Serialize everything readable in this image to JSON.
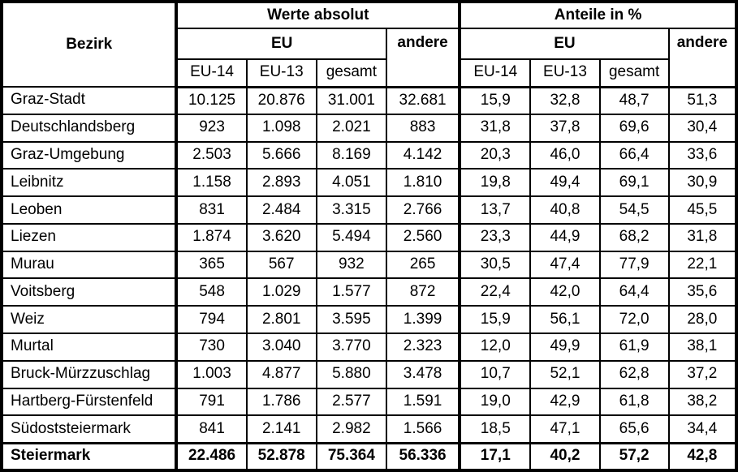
{
  "chart_data": {
    "type": "table",
    "header": {
      "bezirk_label": "Bezirk",
      "group_absolute": "Werte absolut",
      "group_percent": "Anteile in %",
      "eu_label": "EU",
      "andere_label": "andere",
      "sub_labels": [
        "EU-14",
        "EU-13",
        "gesamt"
      ]
    },
    "columns": [
      "Bezirk",
      "Werte absolut / EU / EU-14",
      "Werte absolut / EU / EU-13",
      "Werte absolut / EU / gesamt",
      "Werte absolut / andere",
      "Anteile in % / EU / EU-14",
      "Anteile in % / EU / EU-13",
      "Anteile in % / EU / gesamt",
      "Anteile in % / andere"
    ],
    "rows": [
      {
        "bezirk": "Graz-Stadt",
        "values": [
          "10.125",
          "20.876",
          "31.001",
          "32.681",
          "15,9",
          "32,8",
          "48,7",
          "51,3"
        ]
      },
      {
        "bezirk": "Deutschlandsberg",
        "values": [
          "923",
          "1.098",
          "2.021",
          "883",
          "31,8",
          "37,8",
          "69,6",
          "30,4"
        ]
      },
      {
        "bezirk": "Graz-Umgebung",
        "values": [
          "2.503",
          "5.666",
          "8.169",
          "4.142",
          "20,3",
          "46,0",
          "66,4",
          "33,6"
        ]
      },
      {
        "bezirk": "Leibnitz",
        "values": [
          "1.158",
          "2.893",
          "4.051",
          "1.810",
          "19,8",
          "49,4",
          "69,1",
          "30,9"
        ]
      },
      {
        "bezirk": "Leoben",
        "values": [
          "831",
          "2.484",
          "3.315",
          "2.766",
          "13,7",
          "40,8",
          "54,5",
          "45,5"
        ]
      },
      {
        "bezirk": "Liezen",
        "values": [
          "1.874",
          "3.620",
          "5.494",
          "2.560",
          "23,3",
          "44,9",
          "68,2",
          "31,8"
        ]
      },
      {
        "bezirk": "Murau",
        "values": [
          "365",
          "567",
          "932",
          "265",
          "30,5",
          "47,4",
          "77,9",
          "22,1"
        ]
      },
      {
        "bezirk": "Voitsberg",
        "values": [
          "548",
          "1.029",
          "1.577",
          "872",
          "22,4",
          "42,0",
          "64,4",
          "35,6"
        ]
      },
      {
        "bezirk": "Weiz",
        "values": [
          "794",
          "2.801",
          "3.595",
          "1.399",
          "15,9",
          "56,1",
          "72,0",
          "28,0"
        ]
      },
      {
        "bezirk": "Murtal",
        "values": [
          "730",
          "3.040",
          "3.770",
          "2.323",
          "12,0",
          "49,9",
          "61,9",
          "38,1"
        ]
      },
      {
        "bezirk": "Bruck-Mürzzuschlag",
        "values": [
          "1.003",
          "4.877",
          "5.880",
          "3.478",
          "10,7",
          "52,1",
          "62,8",
          "37,2"
        ]
      },
      {
        "bezirk": "Hartberg-Fürstenfeld",
        "values": [
          "791",
          "1.786",
          "2.577",
          "1.591",
          "19,0",
          "42,9",
          "61,8",
          "38,2"
        ]
      },
      {
        "bezirk": "Südoststeiermark",
        "values": [
          "841",
          "2.141",
          "2.982",
          "1.566",
          "18,5",
          "47,1",
          "65,6",
          "34,4"
        ]
      }
    ],
    "total_row": {
      "bezirk": "Steiermark",
      "values": [
        "22.486",
        "52.878",
        "75.364",
        "56.336",
        "17,1",
        "40,2",
        "57,2",
        "42,8"
      ]
    },
    "colors": {
      "border": "#000000",
      "background": "#ffffff",
      "text": "#000000"
    }
  }
}
